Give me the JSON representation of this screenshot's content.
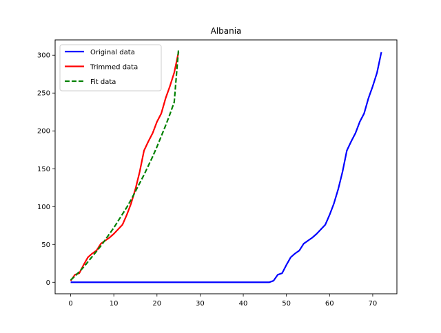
{
  "chart_data": {
    "type": "line",
    "title": "Albania",
    "xlabel": "",
    "ylabel": "",
    "xlim": [
      -3.6,
      75.6
    ],
    "ylim": [
      -15.2,
      320.2
    ],
    "xticks": [
      0,
      10,
      20,
      30,
      40,
      50,
      60,
      70
    ],
    "yticks": [
      0,
      50,
      100,
      150,
      200,
      250,
      300
    ],
    "grid": false,
    "legend_position": "top-left",
    "series": [
      {
        "name": "Original data",
        "color": "#0000ff",
        "style": "solid",
        "x": [
          0,
          46,
          47,
          48,
          49,
          50,
          51,
          52,
          53,
          54,
          55,
          56,
          57,
          58,
          59,
          60,
          61,
          62,
          63,
          64,
          65,
          66,
          67,
          68,
          69,
          70,
          71,
          72
        ],
        "y": [
          0,
          0,
          2,
          10,
          12,
          23,
          33,
          38,
          42,
          51,
          55,
          59,
          64,
          70,
          76,
          89,
          104,
          123,
          146,
          174,
          186,
          197,
          212,
          223,
          243,
          259,
          277,
          304
        ]
      },
      {
        "name": "Trimmed data",
        "color": "#ff0000",
        "style": "solid",
        "x": [
          0,
          1,
          2,
          3,
          4,
          5,
          6,
          7,
          8,
          9,
          10,
          11,
          12,
          13,
          14,
          15,
          16,
          17,
          18,
          19,
          20,
          21,
          22,
          23,
          24,
          25
        ],
        "y": [
          2,
          10,
          12,
          23,
          33,
          38,
          42,
          51,
          55,
          59,
          64,
          70,
          76,
          89,
          104,
          123,
          146,
          174,
          186,
          197,
          212,
          223,
          243,
          259,
          277,
          304
        ]
      },
      {
        "name": "Fit data",
        "color": "#008000",
        "style": "dashed",
        "x": [
          0,
          1,
          2,
          3,
          4,
          5,
          6,
          7,
          8,
          9,
          10,
          11,
          12,
          13,
          14,
          15,
          16,
          17,
          18,
          19,
          20,
          21,
          22,
          23,
          24,
          25
        ],
        "y": [
          3,
          8,
          14,
          20,
          27,
          34,
          41,
          48,
          56,
          64,
          72,
          81,
          90,
          99,
          109,
          120,
          131,
          142,
          154,
          166,
          179,
          193,
          207,
          222,
          238,
          308
        ]
      }
    ]
  }
}
